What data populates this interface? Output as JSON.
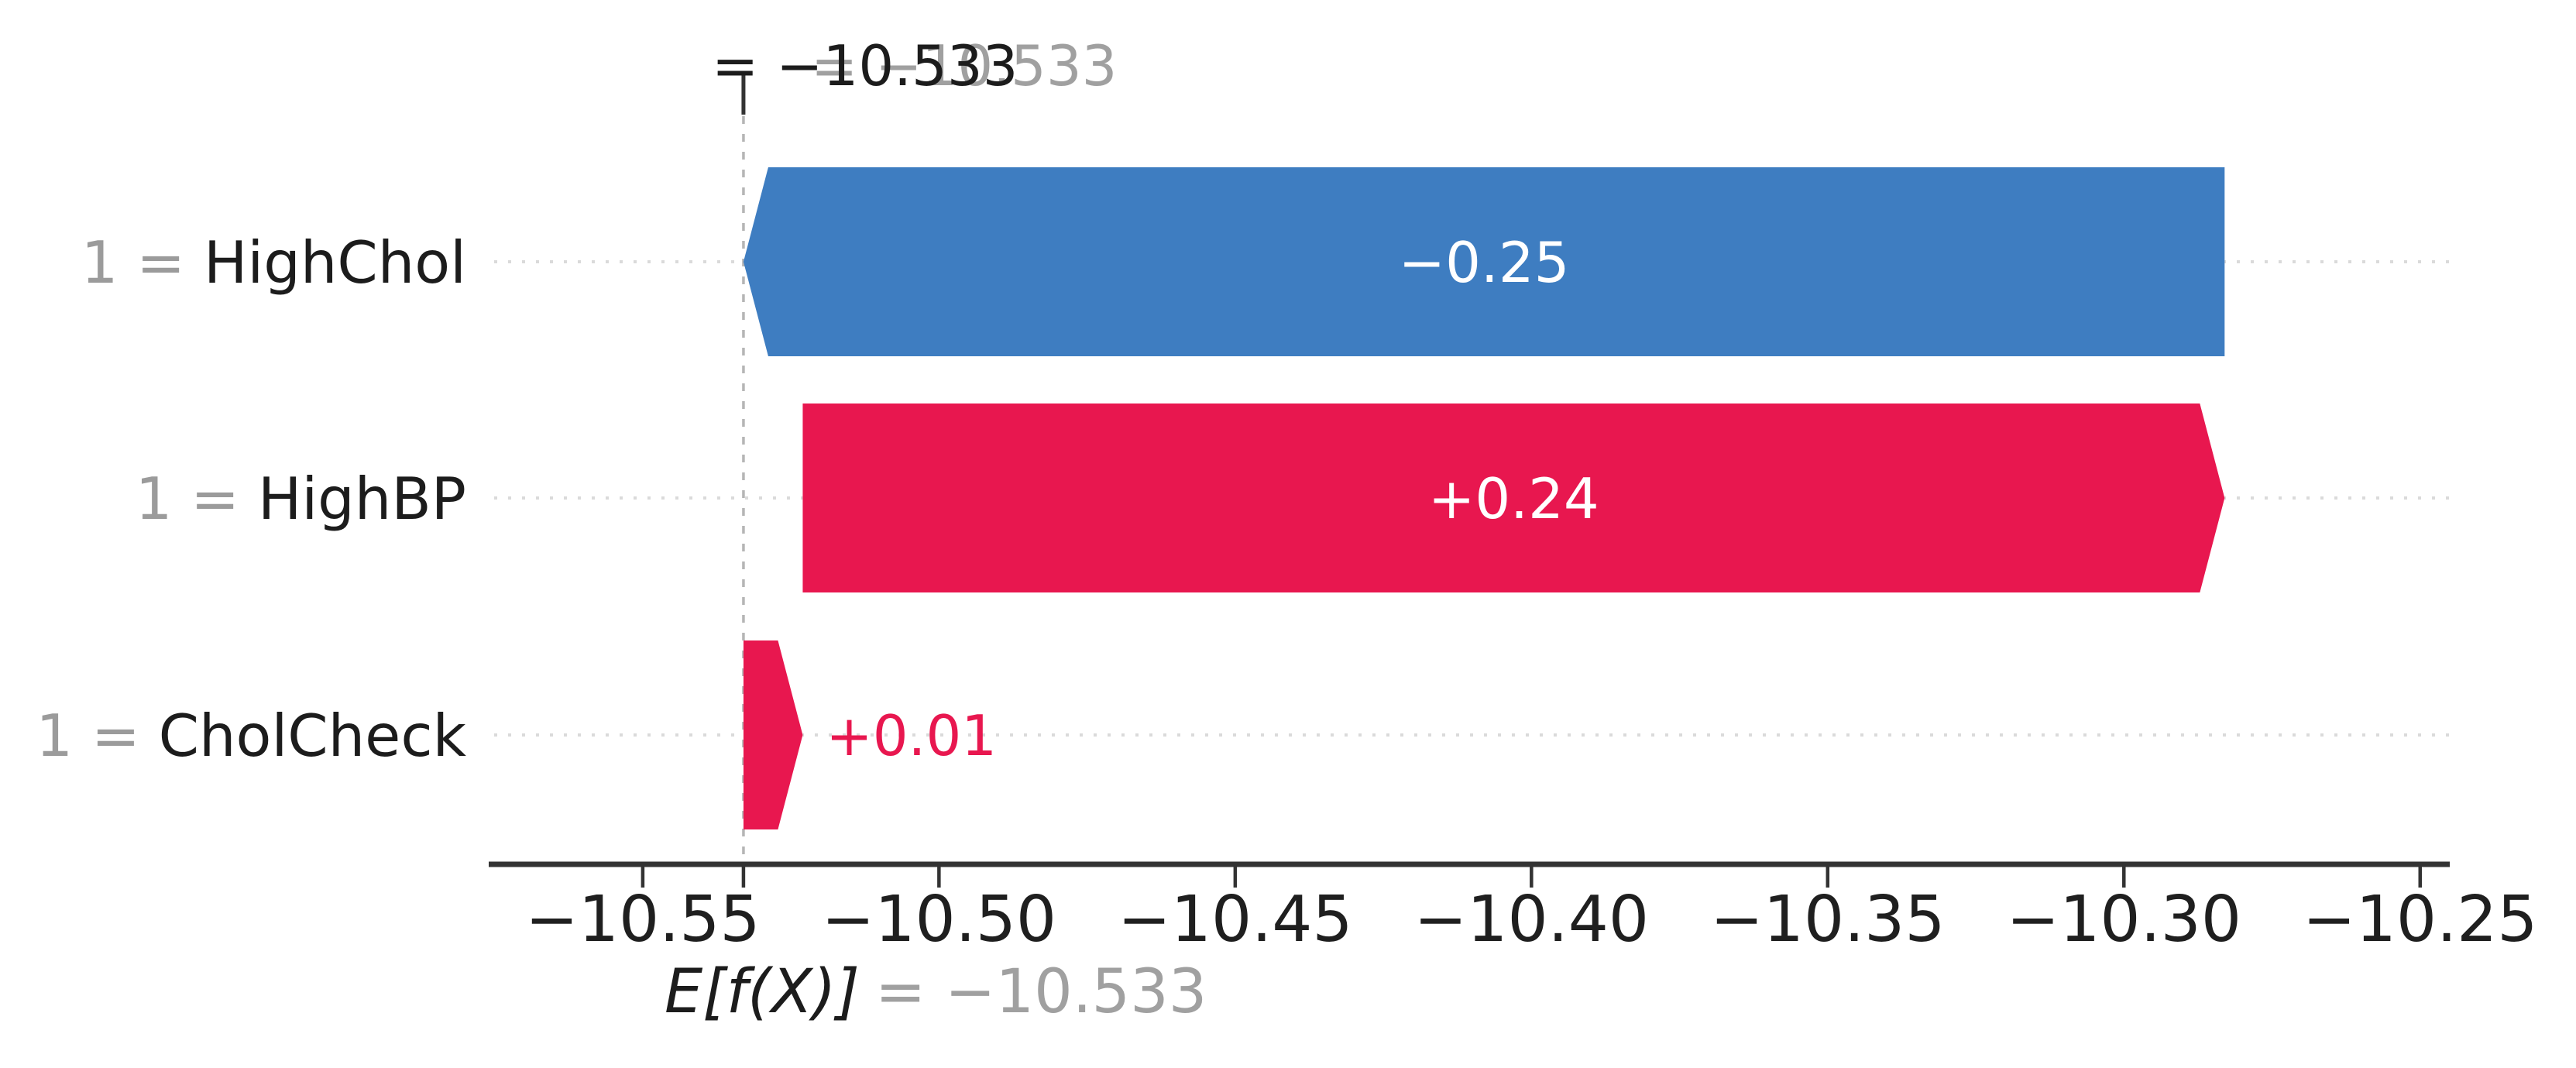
{
  "annotations": {
    "top_dark": "= −10.533",
    "top_gray": "= −10.533",
    "bottom_label": "E[f(X)]",
    "bottom_value": "= −10.533"
  },
  "colors": {
    "positive_bar": "#e8174f",
    "negative_bar": "#3e7dc1",
    "bar_label_inside": "#ffffff",
    "gray_annotation": "#a0a0a0",
    "feature_prefix_gray": "#9b9b9b",
    "dark_text": "#1c1c1c",
    "axis": "#333333",
    "dashed_baseline": "#b5b5b5",
    "dotted_leader": "#dadada",
    "background": "#ffffff"
  },
  "chart_data": {
    "type": "bar",
    "subtype": "shap-waterfall",
    "orientation": "horizontal",
    "base_value": -10.533,
    "fx_value": -10.533,
    "features": [
      {
        "prefix": "1 = ",
        "name": "HighChol",
        "value": -0.25,
        "value_label": "−0.25",
        "label_placement": "inside"
      },
      {
        "prefix": "1 = ",
        "name": "HighBP",
        "value": 0.24,
        "value_label": "+0.24",
        "label_placement": "inside"
      },
      {
        "prefix": "1 = ",
        "name": "CholCheck",
        "value": 0.01,
        "value_label": "+0.01",
        "label_placement": "outside"
      }
    ],
    "x_ticks": [
      {
        "v": -10.55,
        "label": "−10.55"
      },
      {
        "v": -10.5,
        "label": "−10.50"
      },
      {
        "v": -10.45,
        "label": "−10.45"
      },
      {
        "v": -10.4,
        "label": "−10.40"
      },
      {
        "v": -10.35,
        "label": "−10.35"
      },
      {
        "v": -10.3,
        "label": "−10.30"
      },
      {
        "v": -10.25,
        "label": "−10.25"
      }
    ],
    "xlim": [
      -10.576,
      -10.245
    ],
    "grid": "off",
    "legend": "none",
    "title": "",
    "xlabel": "",
    "ylabel": ""
  }
}
